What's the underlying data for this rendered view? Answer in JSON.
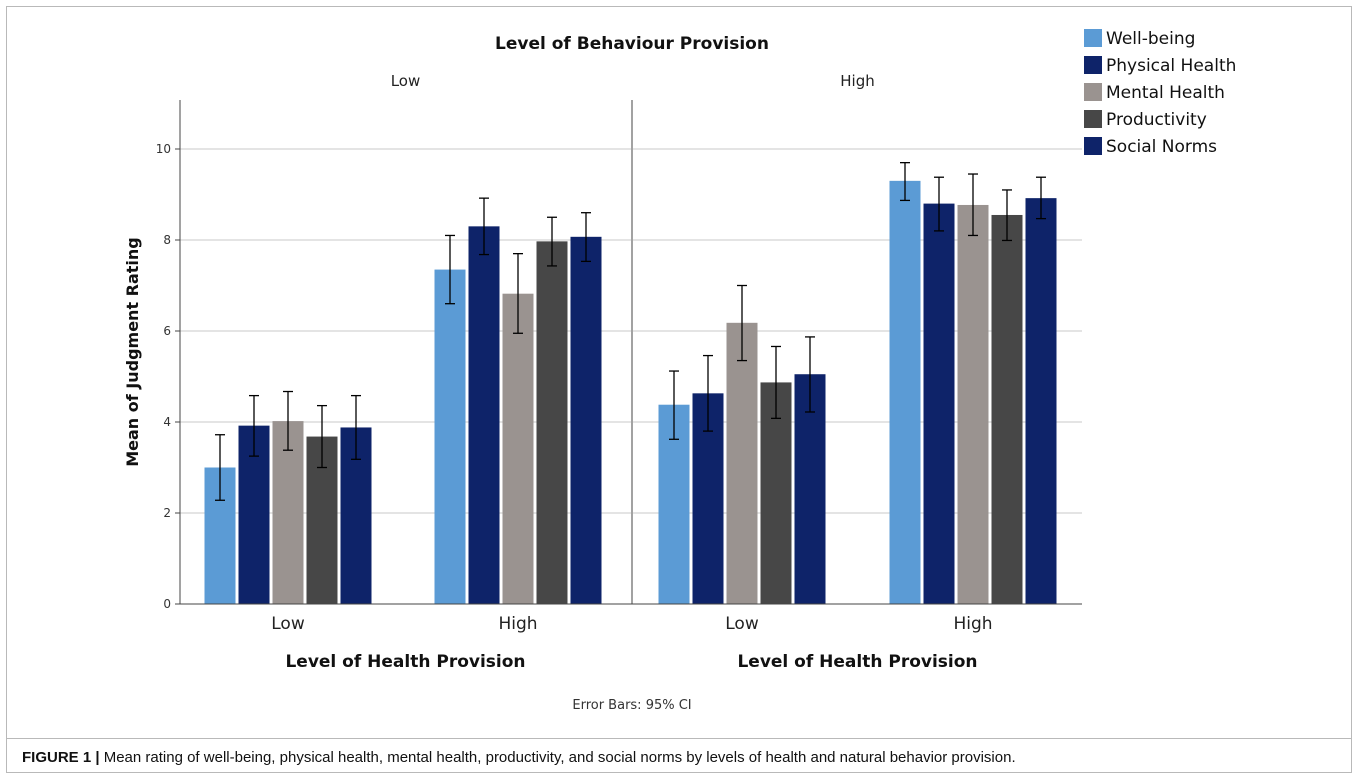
{
  "figure": {
    "caption_label": "FIGURE 1 |",
    "caption_text": " Mean rating of well-being, physical health, mental health, productivity, and social norms by levels of health and natural behavior provision.",
    "error_note": "Error Bars: 95% CI"
  },
  "chart_data": {
    "type": "bar",
    "title": "Level of Behaviour Provision",
    "panels": [
      {
        "label": "Low",
        "xlabel": "Level of Health Provision",
        "categories": [
          "Low",
          "High"
        ],
        "series": [
          {
            "name": "Well-being",
            "values": [
              3.0,
              7.35
            ],
            "ci_low": [
              2.28,
              6.6
            ],
            "ci_high": [
              3.72,
              8.1
            ]
          },
          {
            "name": "Physical Health",
            "values": [
              3.92,
              8.3
            ],
            "ci_low": [
              3.25,
              7.68
            ],
            "ci_high": [
              4.58,
              8.92
            ]
          },
          {
            "name": "Mental Health",
            "values": [
              4.02,
              6.82
            ],
            "ci_low": [
              3.38,
              5.95
            ],
            "ci_high": [
              4.67,
              7.7
            ]
          },
          {
            "name": "Productivity",
            "values": [
              3.68,
              7.97
            ],
            "ci_low": [
              3.0,
              7.43
            ],
            "ci_high": [
              4.36,
              8.5
            ]
          },
          {
            "name": "Social Norms",
            "values": [
              3.88,
              8.07
            ],
            "ci_low": [
              3.18,
              7.53
            ],
            "ci_high": [
              4.58,
              8.6
            ]
          }
        ]
      },
      {
        "label": "High",
        "xlabel": "Level of Health Provision",
        "categories": [
          "Low",
          "High"
        ],
        "series": [
          {
            "name": "Well-being",
            "values": [
              4.38,
              9.3
            ],
            "ci_low": [
              3.62,
              8.87
            ],
            "ci_high": [
              5.12,
              9.7
            ]
          },
          {
            "name": "Physical Health",
            "values": [
              4.63,
              8.8
            ],
            "ci_low": [
              3.8,
              8.2
            ],
            "ci_high": [
              5.46,
              9.38
            ]
          },
          {
            "name": "Mental Health",
            "values": [
              6.18,
              8.77
            ],
            "ci_low": [
              5.35,
              8.1
            ],
            "ci_high": [
              7.0,
              9.45
            ]
          },
          {
            "name": "Productivity",
            "values": [
              4.87,
              8.55
            ],
            "ci_low": [
              4.08,
              7.99
            ],
            "ci_high": [
              5.66,
              9.1
            ]
          },
          {
            "name": "Social Norms",
            "values": [
              5.05,
              8.92
            ],
            "ci_low": [
              4.22,
              8.47
            ],
            "ci_high": [
              5.87,
              9.38
            ]
          }
        ]
      }
    ],
    "ylabel": "Mean of Judgment Rating",
    "ylim": [
      0,
      11
    ],
    "yticks": [
      0,
      2,
      4,
      6,
      8,
      10
    ],
    "grid": true,
    "legend": {
      "position": "top-right",
      "entries": [
        "Well-being",
        "Physical Health",
        "Mental Health",
        "Productivity",
        "Social Norms"
      ]
    },
    "colors": [
      "#5b9bd5",
      "#0e2369",
      "#9a9390",
      "#474747",
      "#0e2369"
    ]
  }
}
